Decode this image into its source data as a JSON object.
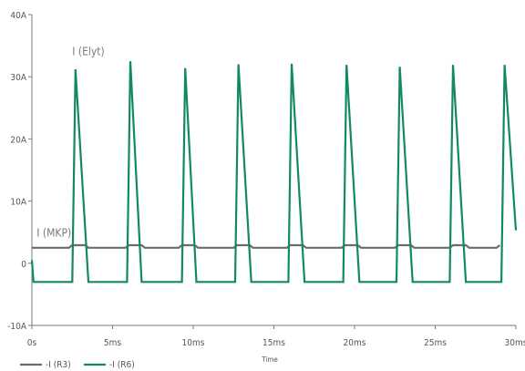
{
  "chart_data": {
    "type": "line",
    "xlabel": "Time",
    "ylabel": "",
    "xlim": [
      0,
      30
    ],
    "ylim": [
      -10,
      40
    ],
    "x_ticks": [
      "0s",
      "5ms",
      "10ms",
      "15ms",
      "20ms",
      "25ms",
      "30ms"
    ],
    "x_tick_values": [
      0,
      5,
      10,
      15,
      20,
      25,
      30
    ],
    "y_ticks": [
      "-10A",
      "0",
      "10A",
      "20A",
      "30A",
      "40A"
    ],
    "y_tick_values": [
      -10,
      0,
      10,
      20,
      30,
      40
    ],
    "annotations": [
      {
        "text": "I (Elyt)",
        "x": 2.5,
        "y": 33.5
      },
      {
        "text": "I (MKP)",
        "x": 0.3,
        "y": 4.3
      }
    ],
    "legend_position": "bottom-left",
    "series": [
      {
        "name": "-I (R3)",
        "color": "#6b6b6b",
        "points": [
          [
            0,
            2.5
          ],
          [
            2.3,
            2.5
          ],
          [
            2.5,
            2.9
          ],
          [
            3.3,
            2.9
          ],
          [
            3.5,
            2.5
          ],
          [
            5.8,
            2.5
          ],
          [
            6.0,
            2.9
          ],
          [
            6.8,
            2.9
          ],
          [
            7.0,
            2.5
          ],
          [
            9.1,
            2.5
          ],
          [
            9.3,
            2.9
          ],
          [
            10.1,
            2.9
          ],
          [
            10.3,
            2.5
          ],
          [
            12.5,
            2.5
          ],
          [
            12.7,
            2.9
          ],
          [
            13.5,
            2.9
          ],
          [
            13.7,
            2.5
          ],
          [
            15.8,
            2.5
          ],
          [
            16.0,
            2.9
          ],
          [
            16.8,
            2.9
          ],
          [
            17.0,
            2.5
          ],
          [
            19.2,
            2.5
          ],
          [
            19.4,
            2.9
          ],
          [
            20.2,
            2.9
          ],
          [
            20.4,
            2.5
          ],
          [
            22.5,
            2.5
          ],
          [
            22.7,
            2.9
          ],
          [
            23.5,
            2.9
          ],
          [
            23.7,
            2.5
          ],
          [
            25.9,
            2.5
          ],
          [
            26.1,
            2.9
          ],
          [
            26.9,
            2.9
          ],
          [
            27.1,
            2.5
          ],
          [
            28.8,
            2.5
          ],
          [
            29.0,
            2.9
          ]
        ]
      },
      {
        "name": "-I (R6)",
        "color": "#128a5c",
        "points": [
          [
            0,
            0.5
          ],
          [
            0.1,
            -3.0
          ],
          [
            2.5,
            -3.0
          ],
          [
            2.7,
            31.2
          ],
          [
            3.5,
            -3.0
          ],
          [
            5.9,
            -3.0
          ],
          [
            6.1,
            32.5
          ],
          [
            6.8,
            -3.0
          ],
          [
            9.3,
            -3.0
          ],
          [
            9.5,
            31.4
          ],
          [
            10.2,
            -3.0
          ],
          [
            12.6,
            -3.0
          ],
          [
            12.8,
            32.0
          ],
          [
            13.6,
            -3.0
          ],
          [
            15.9,
            -3.0
          ],
          [
            16.1,
            32.1
          ],
          [
            16.9,
            -3.0
          ],
          [
            19.3,
            -3.0
          ],
          [
            19.5,
            31.9
          ],
          [
            20.3,
            -3.0
          ],
          [
            22.6,
            -3.0
          ],
          [
            22.8,
            31.6
          ],
          [
            23.6,
            -3.0
          ],
          [
            25.9,
            -3.0
          ],
          [
            26.1,
            31.9
          ],
          [
            26.9,
            -3.0
          ],
          [
            29.1,
            -3.0
          ],
          [
            29.3,
            31.9
          ],
          [
            30.0,
            5.3
          ]
        ]
      }
    ]
  }
}
